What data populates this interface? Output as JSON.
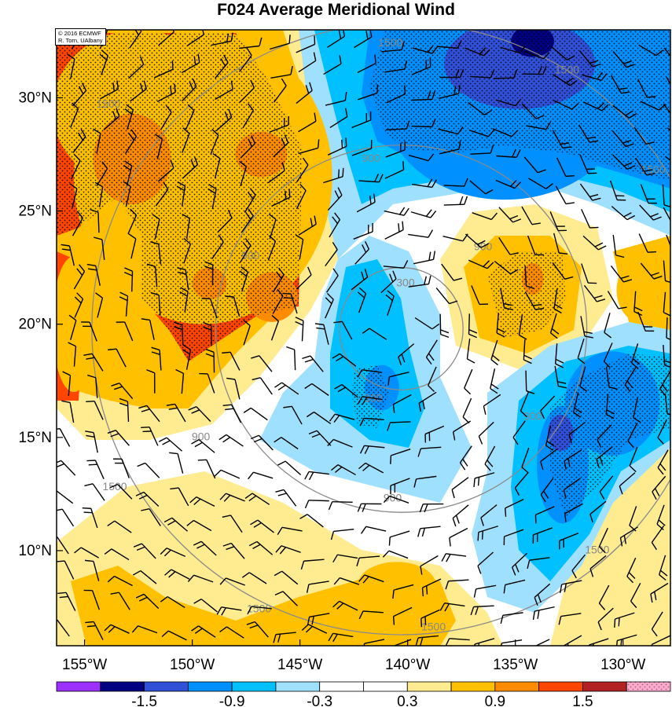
{
  "title": "F024 Average Meridional Wind",
  "credit": {
    "line1": "© 2016 ECMWF",
    "line2": "R. Torn, UAlbany"
  },
  "map": {
    "lon_range": [
      -156.3,
      -127.8
    ],
    "lat_range": [
      5.8,
      33.0
    ],
    "lat_ticks": [
      {
        "value": 10,
        "label": "10°N"
      },
      {
        "value": 15,
        "label": "15°N"
      },
      {
        "value": 20,
        "label": "20°N"
      },
      {
        "value": 25,
        "label": "25°N"
      },
      {
        "value": 30,
        "label": "30°N"
      }
    ],
    "lon_ticks": [
      {
        "value": -155,
        "label": "155°W"
      },
      {
        "value": -150,
        "label": "150°W"
      },
      {
        "value": -145,
        "label": "145°W"
      },
      {
        "value": -140,
        "label": "140°W"
      },
      {
        "value": -135,
        "label": "135°W"
      },
      {
        "value": -130,
        "label": "130°W"
      }
    ],
    "range_rings": {
      "center": {
        "lon": -140.3,
        "lat": 19.8
      },
      "radii_km": [
        300,
        900,
        1500
      ],
      "labels": [
        {
          "text": "300",
          "lon": -140.1,
          "lat": 21.8
        },
        {
          "text": "300",
          "lon": -141.6,
          "lat": 16.7
        },
        {
          "text": "900",
          "lon": -136.5,
          "lat": 23.4
        },
        {
          "text": "900",
          "lon": -134.2,
          "lat": 15.9
        },
        {
          "text": "900",
          "lon": -149.6,
          "lat": 15.0
        },
        {
          "text": "900",
          "lon": -140.7,
          "lat": 12.3
        },
        {
          "text": "900",
          "lon": -141.7,
          "lat": 27.3
        },
        {
          "text": "900",
          "lon": -147.3,
          "lat": 23.0
        },
        {
          "text": "1500",
          "lon": -140.8,
          "lat": 32.4
        },
        {
          "text": "1500",
          "lon": -132.6,
          "lat": 31.2
        },
        {
          "text": "1500",
          "lon": -128.6,
          "lat": 26.8
        },
        {
          "text": "1500",
          "lon": -131.2,
          "lat": 10.0
        },
        {
          "text": "1500",
          "lon": -153.9,
          "lat": 29.7
        },
        {
          "text": "1500",
          "lon": -153.6,
          "lat": 12.8
        },
        {
          "text": "1500",
          "lon": -146.9,
          "lat": 7.4
        },
        {
          "text": "1500",
          "lon": -138.8,
          "lat": 6.6
        }
      ]
    },
    "shading_blobs": [
      {
        "class": 9,
        "lon": -149.5,
        "lat": 26.5,
        "rx": 6.0,
        "ry": 6.5
      },
      {
        "class": 9,
        "lon": -152.5,
        "lat": 29.5,
        "rx": 4.0,
        "ry": 3.5
      },
      {
        "class": 9,
        "lon": -155.5,
        "lat": 20.0,
        "rx": 1.0,
        "ry": 3.0
      },
      {
        "class": 9,
        "lon": -134.5,
        "lat": 21.8,
        "rx": 2.0,
        "ry": 2.0
      },
      {
        "class": 9,
        "lon": -129.0,
        "lat": 21.5,
        "rx": 1.3,
        "ry": 1.5
      },
      {
        "class": 9,
        "lon": -140.5,
        "lat": 8.5,
        "rx": 1.8,
        "ry": 1.0
      },
      {
        "class": 10,
        "lon": -152.8,
        "lat": 27.3,
        "rx": 1.8,
        "ry": 2.0
      },
      {
        "class": 10,
        "lon": -146.8,
        "lat": 27.5,
        "rx": 1.2,
        "ry": 1.0
      },
      {
        "class": 10,
        "lon": -146.3,
        "lat": 21.2,
        "rx": 1.2,
        "ry": 1.1
      },
      {
        "class": 10,
        "lon": -149.2,
        "lat": 21.8,
        "rx": 0.8,
        "ry": 0.7
      },
      {
        "class": 10,
        "lon": -134.2,
        "lat": 22.0,
        "rx": 0.5,
        "ry": 0.7
      },
      {
        "class": 3,
        "lon": -135.5,
        "lat": 29.5,
        "rx": 5.5,
        "ry": 4.0
      },
      {
        "class": 3,
        "lon": -130.5,
        "lat": 16.5,
        "rx": 2.2,
        "ry": 2.3
      },
      {
        "class": 3,
        "lon": -132.8,
        "lat": 13.8,
        "rx": 1.2,
        "ry": 2.6
      },
      {
        "class": 3,
        "lon": -141.2,
        "lat": 17.2,
        "rx": 0.8,
        "ry": 1.0
      },
      {
        "class": 2,
        "lon": -134.8,
        "lat": 31.5,
        "rx": 3.5,
        "ry": 2.0
      },
      {
        "class": 2,
        "lon": -132.9,
        "lat": 15.2,
        "rx": 0.6,
        "ry": 0.8
      },
      {
        "class": 1,
        "lon": -134.2,
        "lat": 32.5,
        "rx": 1.0,
        "ry": 0.7
      }
    ]
  },
  "colorbar": {
    "colors": [
      "#9b30ff",
      "#000080",
      "#3050d8",
      "#0090ff",
      "#00c0ff",
      "#a0e0ff",
      "#ffffff",
      "#ffffff",
      "#ffeb90",
      "#ffc000",
      "#ff8c00",
      "#ff4500",
      "#b22222",
      "#ffaacc"
    ],
    "labels": [
      "-1.5",
      "-0.9",
      "-0.3",
      "0.3",
      "0.9",
      "1.5"
    ]
  }
}
